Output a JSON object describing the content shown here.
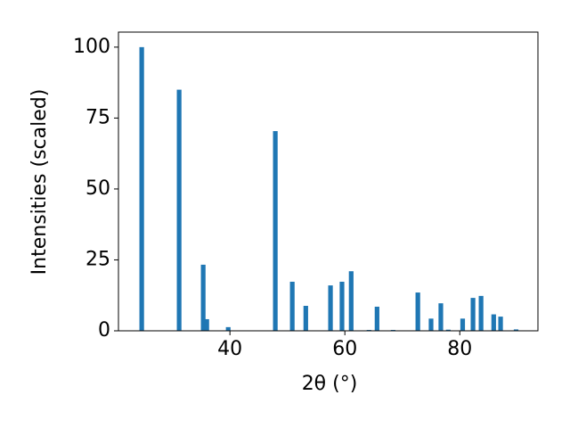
{
  "chart_data": {
    "type": "bar",
    "x_label": "2θ (°)",
    "y_label": "Intensities (scaled)",
    "x": [
      24.65,
      31.16,
      35.35,
      35.97,
      39.7,
      47.9,
      50.85,
      53.2,
      57.5,
      59.5,
      61.1,
      64.2,
      65.6,
      68.4,
      72.7,
      75.0,
      76.7,
      78.0,
      80.5,
      82.3,
      83.7,
      85.9,
      87.1,
      89.8
    ],
    "values": [
      100,
      85,
      23.3,
      4.1,
      1.3,
      70.4,
      17.3,
      8.8,
      16,
      17.3,
      21,
      0.3,
      8.5,
      0.3,
      13.5,
      4.3,
      9.7,
      0.4,
      4.3,
      11.6,
      12.3,
      5.8,
      5,
      0.5
    ],
    "color": "#1f77b4",
    "xlim": [
      20.6,
      93.6
    ],
    "xticks": [
      40,
      60,
      80
    ],
    "ylim": [
      0,
      105.3
    ],
    "yticks": [
      0,
      25,
      50,
      75,
      100
    ]
  }
}
